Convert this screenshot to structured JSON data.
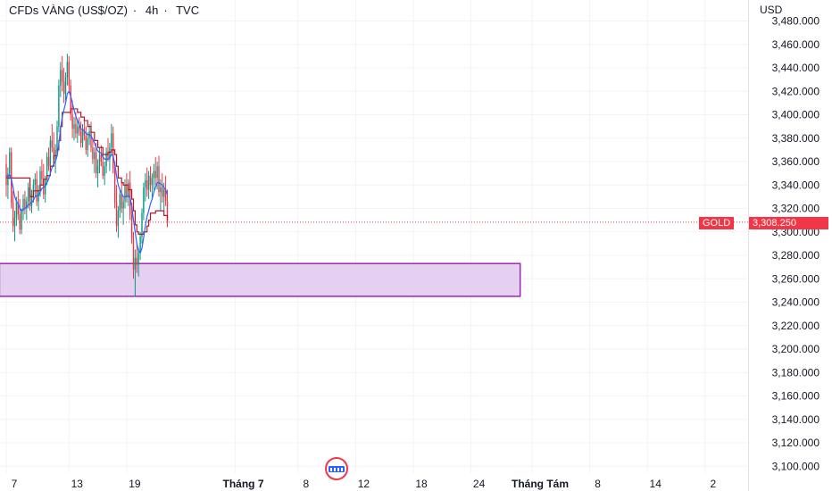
{
  "header": {
    "symbol": "CFDs VÀNG (US$/OZ)",
    "interval": "4h",
    "source": "TVC",
    "currency": "USD"
  },
  "price_tag": {
    "symbol": "GOLD",
    "price": "3,308.250"
  },
  "colors": {
    "up": "#089981",
    "down": "#f23645",
    "fast_line": "#2962ff",
    "slow_line": "#b2182b",
    "zone_fill": "#e1c8ef",
    "zone_border": "#9c27b0",
    "last_price_line": "#f23645"
  },
  "icons": [
    "tradingview-logo-icon"
  ],
  "chart_data": {
    "type": "candlestick",
    "title": "CFDs VÀNG (US$/OZ) · 4h · TVC",
    "ylim": [
      3090,
      3490
    ],
    "y_ticks": [
      3480,
      3460,
      3440,
      3420,
      3400,
      3380,
      3360,
      3340,
      3320,
      3300,
      3280,
      3260,
      3240,
      3220,
      3200,
      3180,
      3160,
      3140,
      3120,
      3100
    ],
    "y_tick_labels": [
      "3,480.000",
      "3,460.000",
      "3,440.000",
      "3,420.000",
      "3,400.000",
      "3,380.000",
      "3,360.000",
      "3,340.000",
      "3,320.000",
      "3,300.000",
      "3,280.000",
      "3,260.000",
      "3,240.000",
      "3,220.000",
      "3,200.000",
      "3,180.000",
      "3,160.000",
      "3,140.000",
      "3,120.000",
      "3,100.000"
    ],
    "x_tick_labels": [
      "7",
      "13",
      "19",
      "Tháng 7",
      "8",
      "12",
      "18",
      "24",
      "Tháng Tám",
      "8",
      "14",
      "2"
    ],
    "x_tick_bar_index": [
      0,
      37,
      71,
      135,
      172,
      206,
      240,
      274,
      310,
      344,
      378,
      412
    ],
    "last_price": 3308.25,
    "grid": true,
    "demand_zone": {
      "y_low": 3245,
      "y_high": 3273,
      "bar_start": -4,
      "bar_end": 303
    },
    "candles_ohlc": [
      [
        3358,
        3366,
        3330,
        3340
      ],
      [
        3340,
        3355,
        3328,
        3350
      ],
      [
        3350,
        3372,
        3345,
        3368
      ],
      [
        3368,
        3372,
        3320,
        3325
      ],
      [
        3325,
        3335,
        3300,
        3305
      ],
      [
        3305,
        3318,
        3292,
        3312
      ],
      [
        3312,
        3330,
        3305,
        3325
      ],
      [
        3325,
        3335,
        3310,
        3315
      ],
      [
        3315,
        3328,
        3298,
        3302
      ],
      [
        3302,
        3320,
        3298,
        3318
      ],
      [
        3318,
        3332,
        3310,
        3328
      ],
      [
        3328,
        3335,
        3315,
        3320
      ],
      [
        3320,
        3330,
        3310,
        3326
      ],
      [
        3326,
        3342,
        3320,
        3338
      ],
      [
        3338,
        3345,
        3318,
        3322
      ],
      [
        3322,
        3336,
        3316,
        3332
      ],
      [
        3332,
        3345,
        3325,
        3340
      ],
      [
        3340,
        3350,
        3330,
        3345
      ],
      [
        3345,
        3352,
        3322,
        3326
      ],
      [
        3326,
        3340,
        3318,
        3336
      ],
      [
        3336,
        3356,
        3330,
        3352
      ],
      [
        3352,
        3362,
        3340,
        3345
      ],
      [
        3345,
        3358,
        3328,
        3332
      ],
      [
        3332,
        3348,
        3325,
        3345
      ],
      [
        3345,
        3368,
        3340,
        3364
      ],
      [
        3364,
        3372,
        3352,
        3356
      ],
      [
        3356,
        3382,
        3350,
        3378
      ],
      [
        3378,
        3392,
        3368,
        3372
      ],
      [
        3372,
        3385,
        3358,
        3362
      ],
      [
        3362,
        3375,
        3350,
        3370
      ],
      [
        3370,
        3395,
        3365,
        3390
      ],
      [
        3390,
        3430,
        3385,
        3425
      ],
      [
        3425,
        3445,
        3415,
        3438
      ],
      [
        3438,
        3450,
        3420,
        3428
      ],
      [
        3428,
        3440,
        3410,
        3418
      ],
      [
        3418,
        3436,
        3412,
        3432
      ],
      [
        3432,
        3452,
        3425,
        3445
      ],
      [
        3445,
        3450,
        3420,
        3425
      ],
      [
        3425,
        3430,
        3395,
        3400
      ],
      [
        3400,
        3412,
        3380,
        3388
      ],
      [
        3388,
        3398,
        3378,
        3392
      ],
      [
        3392,
        3402,
        3380,
        3384
      ],
      [
        3384,
        3396,
        3376,
        3390
      ],
      [
        3390,
        3398,
        3382,
        3386
      ],
      [
        3386,
        3394,
        3372,
        3376
      ],
      [
        3376,
        3392,
        3372,
        3388
      ],
      [
        3388,
        3396,
        3378,
        3382
      ],
      [
        3382,
        3390,
        3366,
        3370
      ],
      [
        3370,
        3385,
        3364,
        3380
      ],
      [
        3380,
        3392,
        3374,
        3386
      ],
      [
        3386,
        3394,
        3368,
        3372
      ],
      [
        3372,
        3380,
        3358,
        3362
      ],
      [
        3362,
        3372,
        3350,
        3368
      ],
      [
        3368,
        3376,
        3346,
        3350
      ],
      [
        3350,
        3362,
        3338,
        3356
      ],
      [
        3356,
        3372,
        3350,
        3366
      ],
      [
        3366,
        3374,
        3356,
        3360
      ],
      [
        3360,
        3368,
        3345,
        3348
      ],
      [
        3348,
        3360,
        3340,
        3356
      ],
      [
        3356,
        3372,
        3350,
        3368
      ],
      [
        3368,
        3380,
        3360,
        3362
      ],
      [
        3362,
        3376,
        3352,
        3372
      ],
      [
        3372,
        3392,
        3366,
        3384
      ],
      [
        3384,
        3390,
        3350,
        3354
      ],
      [
        3354,
        3360,
        3320,
        3325
      ],
      [
        3325,
        3340,
        3300,
        3305
      ],
      [
        3305,
        3322,
        3295,
        3318
      ],
      [
        3318,
        3336,
        3312,
        3332
      ],
      [
        3332,
        3342,
        3316,
        3320
      ],
      [
        3320,
        3330,
        3306,
        3326
      ],
      [
        3326,
        3345,
        3320,
        3340
      ],
      [
        3340,
        3350,
        3325,
        3330
      ],
      [
        3330,
        3345,
        3322,
        3342
      ],
      [
        3342,
        3352,
        3310,
        3315
      ],
      [
        3315,
        3325,
        3290,
        3295
      ],
      [
        3295,
        3300,
        3260,
        3268
      ],
      [
        3268,
        3285,
        3245,
        3278
      ],
      [
        3278,
        3290,
        3265,
        3272
      ],
      [
        3272,
        3286,
        3262,
        3282
      ],
      [
        3282,
        3300,
        3276,
        3296
      ],
      [
        3296,
        3320,
        3290,
        3316
      ],
      [
        3316,
        3342,
        3310,
        3338
      ],
      [
        3338,
        3350,
        3326,
        3344
      ],
      [
        3344,
        3355,
        3330,
        3336
      ],
      [
        3336,
        3352,
        3328,
        3348
      ],
      [
        3348,
        3356,
        3334,
        3340
      ],
      [
        3340,
        3350,
        3328,
        3346
      ],
      [
        3346,
        3358,
        3336,
        3352
      ],
      [
        3352,
        3364,
        3340,
        3346
      ],
      [
        3346,
        3360,
        3336,
        3356
      ],
      [
        3356,
        3365,
        3330,
        3334
      ],
      [
        3334,
        3345,
        3318,
        3338
      ],
      [
        3338,
        3350,
        3325,
        3330
      ],
      [
        3330,
        3342,
        3318,
        3336
      ],
      [
        3336,
        3348,
        3322,
        3326
      ],
      [
        3326,
        3336,
        3304,
        3308
      ]
    ],
    "series": [
      {
        "name": "",
        "values": [
          3348,
          3347,
          3349,
          3345,
          3338,
          3330,
          3326,
          3324,
          3320,
          3318,
          3319,
          3320,
          3321,
          3323,
          3324,
          3325,
          3327,
          3330,
          3331,
          3331,
          3334,
          3337,
          3338,
          3339,
          3342,
          3345,
          3350,
          3355,
          3358,
          3360,
          3365,
          3375,
          3388,
          3398,
          3404,
          3410,
          3418,
          3420,
          3416,
          3410,
          3404,
          3399,
          3395,
          3392,
          3388,
          3387,
          3386,
          3384,
          3383,
          3383,
          3382,
          3379,
          3376,
          3372,
          3369,
          3368,
          3367,
          3364,
          3362,
          3362,
          3362,
          3363,
          3366,
          3365,
          3358,
          3348,
          3340,
          3336,
          3333,
          3330,
          3330,
          3330,
          3331,
          3329,
          3322,
          3310,
          3300,
          3290,
          3284,
          3282,
          3286,
          3295,
          3305,
          3313,
          3318,
          3324,
          3328,
          3334,
          3338,
          3342,
          3342,
          3341,
          3340,
          3338,
          3336,
          3332
        ]
      },
      {
        "name": "",
        "values": [
          3346,
          3346,
          3346,
          3346,
          3346,
          3346,
          3346,
          3346,
          3346,
          3346,
          3346,
          3346,
          3346,
          3346,
          3330,
          3330,
          3335,
          3335,
          3335,
          3335,
          3340,
          3340,
          3345,
          3345,
          3348,
          3348,
          3356,
          3356,
          3365,
          3365,
          3370,
          3378,
          3390,
          3402,
          3402,
          3402,
          3402,
          3402,
          3405,
          3405,
          3405,
          3405,
          3402,
          3402,
          3398,
          3398,
          3395,
          3395,
          3390,
          3390,
          3385,
          3385,
          3378,
          3378,
          3372,
          3372,
          3372,
          3366,
          3366,
          3366,
          3368,
          3368,
          3370,
          3370,
          3366,
          3356,
          3346,
          3346,
          3342,
          3340,
          3340,
          3340,
          3336,
          3336,
          3328,
          3318,
          3306,
          3300,
          3298,
          3298,
          3298,
          3300,
          3300,
          3305,
          3310,
          3316,
          3316,
          3316,
          3318,
          3318,
          3318,
          3318,
          3318,
          3314,
          3314,
          3310
        ]
      }
    ]
  }
}
